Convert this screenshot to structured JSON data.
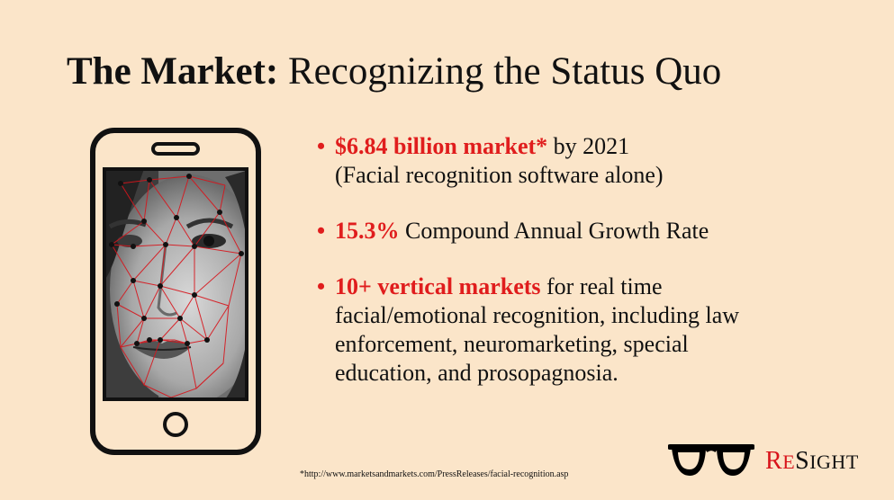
{
  "title": {
    "bold": "The Market:",
    "rest": " Recognizing the Status Quo"
  },
  "bullets": [
    {
      "highlight": "$6.84 billion market*",
      "text": " by 2021",
      "line2": "(Facial recognition software alone)"
    },
    {
      "highlight": "15.3%",
      "text": " Compound Annual Growth Rate"
    },
    {
      "highlight": "10+ vertical markets",
      "text": " for real time",
      "lines": [
        "facial/emotional recognition, including law",
        "enforcement, neuromarketing, special",
        "education, and prosopagnosia."
      ]
    }
  ],
  "footnote": "*http://www.marketsandmarkets.com/PressReleases/facial-recognition.asp",
  "logo": {
    "part1_big": "R",
    "part1_small": "E",
    "part2_big": "S",
    "part2_small": "IGHT"
  },
  "colors": {
    "background": "#fbe5c9",
    "accent": "#e01d1d",
    "text": "#111111"
  },
  "icons": {
    "phone": "smartphone-icon",
    "glasses": "glasses-icon"
  }
}
